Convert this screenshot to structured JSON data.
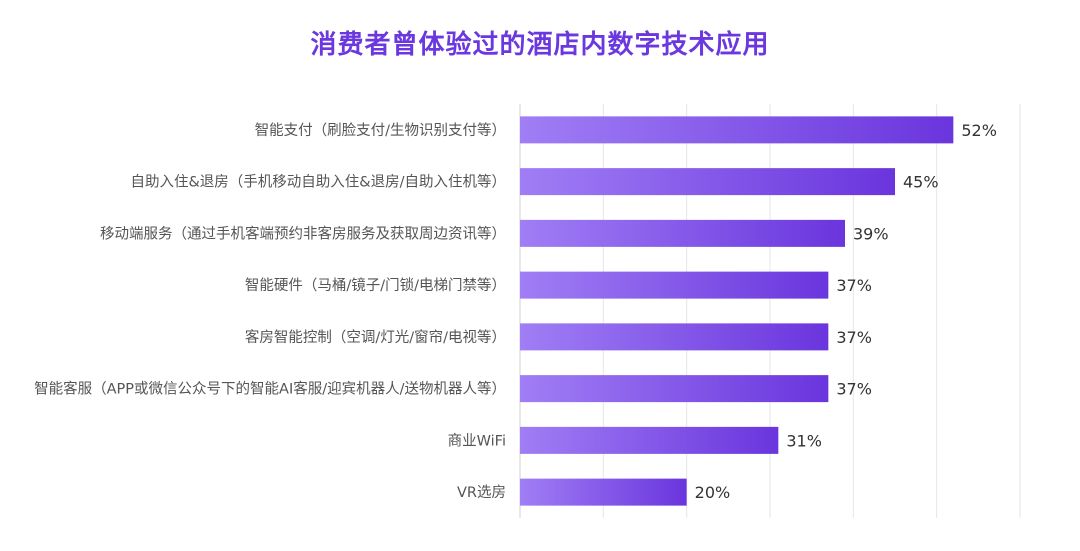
{
  "chart_data": {
    "type": "bar",
    "orientation": "horizontal",
    "title": "消费者曾体验过的酒店内数字技术应用",
    "categories": [
      "智能支付（刷脸支付/生物识别支付等）",
      "自助入住&退房（手机移动自助入住&退房/自助入住机等）",
      "移动端服务（通过手机客端预约非客房服务及获取周边资讯等）",
      "智能硬件（马桶/镜子/门锁/电梯门禁等）",
      "客房智能控制（空调/灯光/窗帘/电视等）",
      "智能客服（APP或微信公众号下的智能AI客服/迎宾机器人/送物机器人等）",
      "商业WiFi",
      "VR选房"
    ],
    "values": [
      52,
      45,
      39,
      37,
      37,
      37,
      31,
      20
    ],
    "value_labels": [
      "52%",
      "45%",
      "39%",
      "37%",
      "37%",
      "37%",
      "31%",
      "20%"
    ],
    "xlim": [
      0,
      60
    ],
    "grid": true,
    "colors": {
      "bar_start": "#a07ef5",
      "bar_end": "#6a35dd",
      "title": "#6b38e0"
    }
  }
}
